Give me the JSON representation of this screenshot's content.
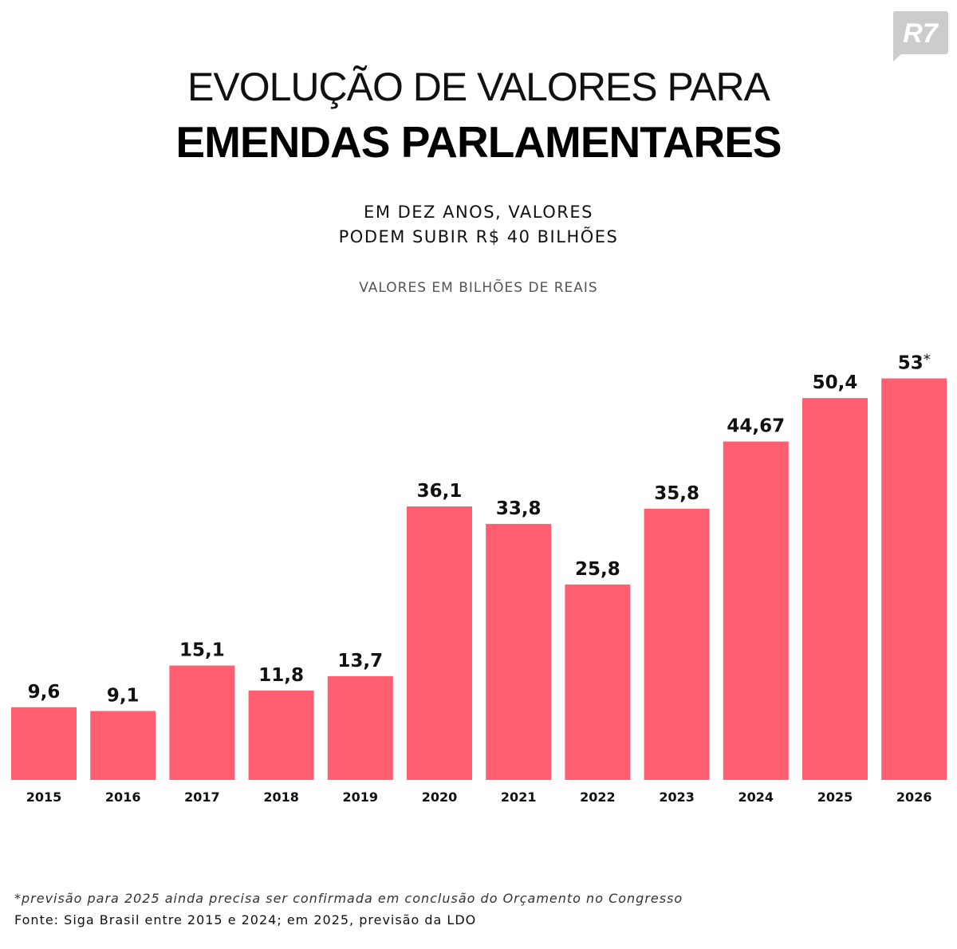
{
  "brand": {
    "logo_text": "R7"
  },
  "header": {
    "title_line1": "EVOLUÇÃO DE VALORES PARA",
    "title_line2": "EMENDAS PARLAMENTARES",
    "subtitle_line1": "EM DEZ ANOS, VALORES",
    "subtitle_line2": "PODEM SUBIR R$ 40 BILHÕES",
    "units_note": "VALORES EM BILHÕES DE REAIS"
  },
  "footer": {
    "note": "*previsão para 2025 ainda precisa ser confirmada em conclusão do Orçamento no Congresso",
    "source": "Fonte: Siga Brasil entre 2015 e 2024; em 2025, previsão da LDO"
  },
  "colors": {
    "bar": "#FF5F70",
    "text": "#111111",
    "logo": "#CCCCCC"
  },
  "chart_data": {
    "type": "bar",
    "categories": [
      "2015",
      "2016",
      "2017",
      "2018",
      "2019",
      "2020",
      "2021",
      "2022",
      "2023",
      "2024",
      "2025",
      "2026"
    ],
    "values": [
      9.6,
      9.1,
      15.1,
      11.8,
      13.7,
      36.1,
      33.8,
      25.8,
      35.8,
      44.67,
      50.4,
      53
    ],
    "data_labels": [
      "9,6",
      "9,1",
      "15,1",
      "11,8",
      "13,7",
      "36,1",
      "33,8",
      "25,8",
      "35,8",
      "44,67",
      "50,4",
      "53"
    ],
    "label_suffixes": [
      "",
      "",
      "",
      "",
      "",
      "",
      "",
      "",
      "",
      "",
      "",
      "*"
    ],
    "ylim": [
      0,
      55
    ],
    "grid": false,
    "legend": "none"
  }
}
